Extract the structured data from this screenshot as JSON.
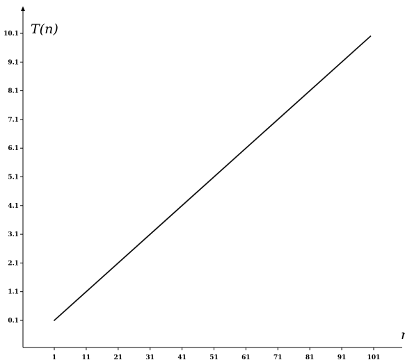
{
  "chart_data": {
    "type": "line",
    "title": "",
    "xlabel": "n",
    "ylabel": "T(n)",
    "xlim": [
      -8,
      109
    ],
    "ylim": [
      -0.7,
      11
    ],
    "grid": false,
    "legend": "none",
    "x_ticks": [
      1,
      11,
      21,
      31,
      41,
      51,
      61,
      71,
      81,
      91,
      101
    ],
    "y_ticks": [
      0.1,
      1.1,
      2.1,
      3.1,
      4.1,
      5.1,
      6.1,
      7.1,
      8.1,
      9.1,
      10.1
    ],
    "series": [
      {
        "x": [
          1,
          100
        ],
        "y": [
          0.1,
          10
        ]
      }
    ],
    "colors": {
      "line": "#111111",
      "axis": "#000000"
    }
  }
}
